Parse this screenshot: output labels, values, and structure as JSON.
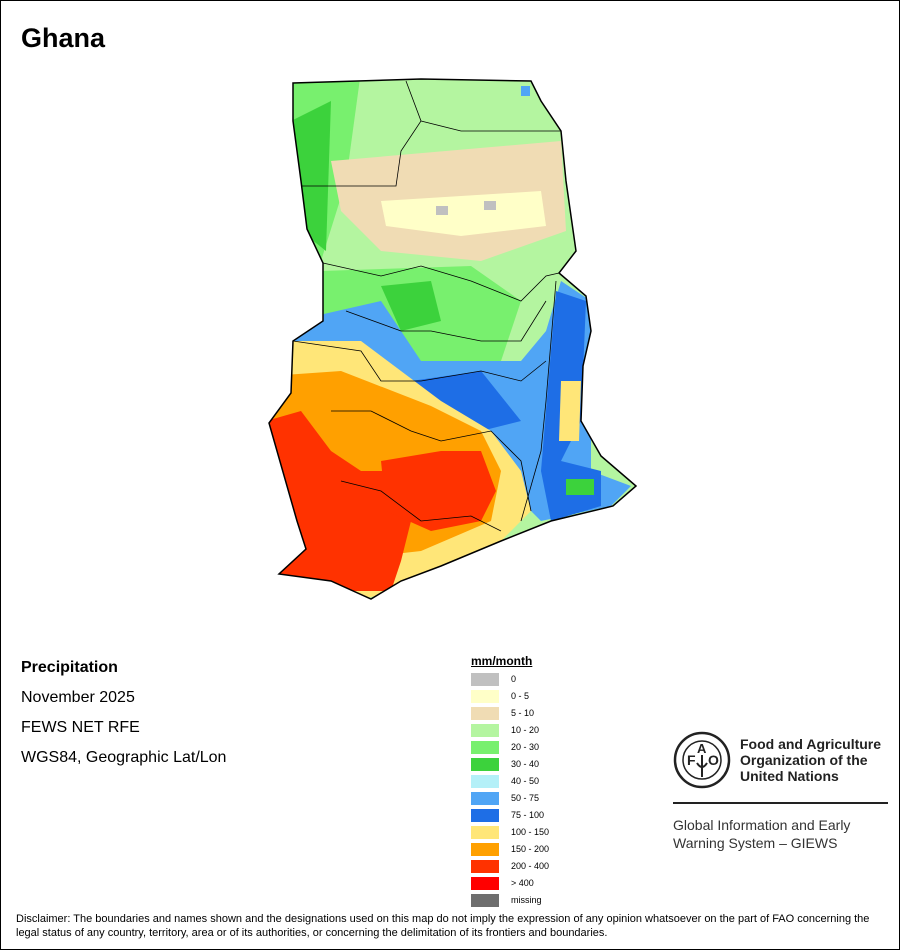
{
  "title": "Ghana",
  "info": {
    "variable": "Precipitation",
    "period": "November 2025",
    "source": "FEWS NET RFE",
    "projection": "WGS84, Geographic Lat/Lon"
  },
  "legend": {
    "title": "mm/month",
    "items": [
      {
        "label": "0",
        "color": "#c0c0c0"
      },
      {
        "label": "0 - 5",
        "color": "#ffffc8"
      },
      {
        "label": "5 - 10",
        "color": "#f0dcb4"
      },
      {
        "label": "10 - 20",
        "color": "#b4f5a0"
      },
      {
        "label": "20 - 30",
        "color": "#78f06e"
      },
      {
        "label": "30 - 40",
        "color": "#3cd23c"
      },
      {
        "label": "40 - 50",
        "color": "#b4f0f8"
      },
      {
        "label": "50 - 75",
        "color": "#50a5f5"
      },
      {
        "label": "75 - 100",
        "color": "#1e6ee6"
      },
      {
        "label": "100 - 150",
        "color": "#ffe678"
      },
      {
        "label": "150 - 200",
        "color": "#ffa000"
      },
      {
        "label": "200 - 400",
        "color": "#ff3200"
      },
      {
        "label": "> 400",
        "color": "#ff0000"
      },
      {
        "label": "missing",
        "color": "#6e6e6e"
      }
    ]
  },
  "fao": {
    "logo_text": "FAO FIAT PANIS",
    "name_line1": "Food and Agriculture",
    "name_line2": "Organization of the",
    "name_line3": "United Nations",
    "giews_line1": "Global Information and Early",
    "giews_line2": "Warning System – GIEWS"
  },
  "disclaimer": "Disclaimer: The boundaries and names shown and the designations used on this map do not imply the expression of any opinion whatsoever on the part of FAO concerning the legal status of any country, territory, area or of its authorities, or concerning the delimitation of its frontiers and boundaries."
}
